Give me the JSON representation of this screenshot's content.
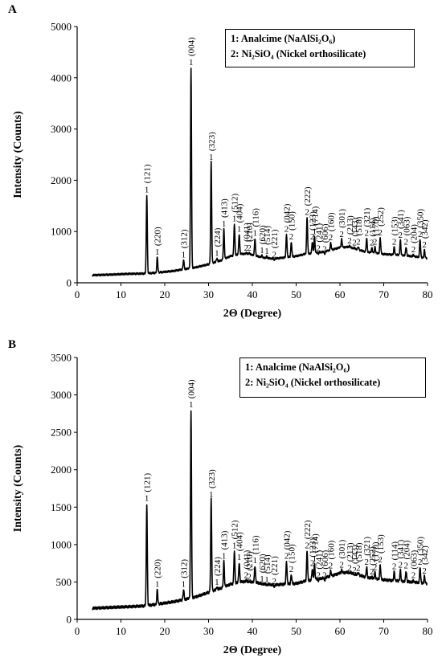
{
  "chart_data": [
    {
      "panel": "A",
      "type": "line",
      "xlabel": "2Θ (Degree)",
      "ylabel": "Intensity (Counts)",
      "xlim": [
        0,
        80
      ],
      "ylim": [
        0,
        5000
      ],
      "xticks": [
        "0",
        "10",
        "20",
        "30",
        "40",
        "50",
        "60",
        "70",
        "80"
      ],
      "yticks": [
        "0",
        "1000",
        "2000",
        "3000",
        "4000",
        "5000"
      ],
      "legend": [
        "1: Analcime (NaAlSi₂O₆)",
        "2: Ni₂SiO₄ (Nickel orthosilicate)"
      ],
      "legend_position": "top-right",
      "baseline": [
        [
          3.5,
          150
        ],
        [
          8,
          160
        ],
        [
          12,
          175
        ],
        [
          15,
          180
        ],
        [
          18,
          195
        ],
        [
          22,
          230
        ],
        [
          24,
          260
        ],
        [
          27,
          300
        ],
        [
          30,
          360
        ],
        [
          33,
          440
        ],
        [
          35,
          520
        ],
        [
          37,
          560
        ],
        [
          39,
          570
        ],
        [
          41,
          520
        ],
        [
          43,
          480
        ],
        [
          45,
          470
        ],
        [
          47,
          490
        ],
        [
          50,
          520
        ],
        [
          52,
          560
        ],
        [
          54,
          580
        ],
        [
          56,
          600
        ],
        [
          58,
          640
        ],
        [
          60,
          690
        ],
        [
          62,
          700
        ],
        [
          64,
          650
        ],
        [
          66,
          600
        ],
        [
          68,
          580
        ],
        [
          70,
          560
        ],
        [
          72,
          550
        ],
        [
          74,
          540
        ],
        [
          76,
          520
        ],
        [
          78,
          500
        ],
        [
          80,
          480
        ]
      ],
      "peaks": [
        {
          "x": 15.9,
          "y": 1720,
          "phase": "1",
          "hkl": "(121)"
        },
        {
          "x": 18.3,
          "y": 500,
          "phase": "1",
          "hkl": "(220)"
        },
        {
          "x": 24.3,
          "y": 450,
          "phase": "1",
          "hkl": "(312)"
        },
        {
          "x": 26.0,
          "y": 4200,
          "phase": "1",
          "hkl": "(004)"
        },
        {
          "x": 30.6,
          "y": 2350,
          "phase": "1",
          "hkl": "(323)"
        },
        {
          "x": 31.9,
          "y": 480,
          "phase": "1",
          "hkl": "(224)"
        },
        {
          "x": 33.5,
          "y": 1050,
          "phase": "1",
          "hkl": "(413)"
        },
        {
          "x": 35.9,
          "y": 1150,
          "phase": "1",
          "hkl": "(512)"
        },
        {
          "x": 37.0,
          "y": 950,
          "phase": "1",
          "hkl": "(404)"
        },
        {
          "x": 38.6,
          "y": 580,
          "phase": "2",
          "hkl": "(041)"
        },
        {
          "x": 39.3,
          "y": 580,
          "phase": "2",
          "hkl": "(210)"
        },
        {
          "x": 40.6,
          "y": 870,
          "phase": "1",
          "hkl": "(116)"
        },
        {
          "x": 42.2,
          "y": 530,
          "phase": "1",
          "hkl": "(620)"
        },
        {
          "x": 43.3,
          "y": 520,
          "phase": "1",
          "hkl": "(514)"
        },
        {
          "x": 45.0,
          "y": 450,
          "phase": "2",
          "hkl": "(221)"
        },
        {
          "x": 47.8,
          "y": 950,
          "phase": "2",
          "hkl": "(042)"
        },
        {
          "x": 48.9,
          "y": 800,
          "phase": "2",
          "hkl": "(150)"
        },
        {
          "x": 52.5,
          "y": 1280,
          "phase": "2",
          "hkl": "(222)"
        },
        {
          "x": 53.7,
          "y": 800,
          "phase": "2",
          "hkl": "(123)"
        },
        {
          "x": 54.2,
          "y": 900,
          "phase": "1",
          "hkl": "(714)"
        },
        {
          "x": 55.1,
          "y": 570,
          "phase": "2",
          "hkl": "(241)"
        },
        {
          "x": 56.5,
          "y": 560,
          "phase": "2",
          "hkl": "(606)"
        },
        {
          "x": 57.9,
          "y": 780,
          "phase": "2",
          "hkl": "(160)"
        },
        {
          "x": 60.4,
          "y": 850,
          "phase": "2",
          "hkl": "(301)"
        },
        {
          "x": 62.2,
          "y": 720,
          "phase": "2",
          "hkl": "(213)"
        },
        {
          "x": 63.3,
          "y": 680,
          "phase": "2",
          "hkl": "(143)"
        },
        {
          "x": 64.2,
          "y": 700,
          "phase": "2",
          "hkl": "(518)"
        },
        {
          "x": 66.1,
          "y": 870,
          "phase": "2",
          "hkl": "(321)"
        },
        {
          "x": 67.3,
          "y": 680,
          "phase": "2",
          "hkl": "(114)"
        },
        {
          "x": 68.0,
          "y": 700,
          "phase": "2",
          "hkl": "(170)"
        },
        {
          "x": 69.2,
          "y": 880,
          "phase": "2",
          "hkl": "(252)"
        },
        {
          "x": 72.4,
          "y": 700,
          "phase": "2",
          "hkl": "(153)"
        },
        {
          "x": 73.8,
          "y": 830,
          "phase": "2",
          "hkl": "(341)"
        },
        {
          "x": 75.1,
          "y": 700,
          "phase": "2",
          "hkl": "(063)"
        },
        {
          "x": 76.8,
          "y": 550,
          "phase": "2",
          "hkl": "(204)"
        },
        {
          "x": 78.3,
          "y": 850,
          "phase": "2",
          "hkl": "(350)"
        },
        {
          "x": 79.3,
          "y": 640,
          "phase": "2",
          "hkl": "(342)"
        }
      ]
    },
    {
      "panel": "B",
      "type": "line",
      "xlabel": "2Θ (Degree)",
      "ylabel": "Intensity (Counts)",
      "xlim": [
        0,
        80
      ],
      "ylim": [
        0,
        3500
      ],
      "xticks": [
        "0",
        "10",
        "20",
        "30",
        "40",
        "50",
        "60",
        "70",
        "80"
      ],
      "yticks": [
        "0",
        "500",
        "1000",
        "1500",
        "2000",
        "2500",
        "3000",
        "3500"
      ],
      "legend": [
        "1: Analcime (NaAlSi₂O₆)",
        "2: Ni₂SiO₄ (Nickel orthosilicate)"
      ],
      "legend_position": "top-right",
      "baseline": [
        [
          3.5,
          150
        ],
        [
          8,
          160
        ],
        [
          12,
          170
        ],
        [
          15,
          180
        ],
        [
          18,
          200
        ],
        [
          22,
          235
        ],
        [
          24,
          260
        ],
        [
          27,
          300
        ],
        [
          30,
          360
        ],
        [
          33,
          420
        ],
        [
          35,
          470
        ],
        [
          37,
          500
        ],
        [
          39,
          510
        ],
        [
          41,
          490
        ],
        [
          43,
          470
        ],
        [
          45,
          460
        ],
        [
          47,
          470
        ],
        [
          50,
          480
        ],
        [
          52,
          510
        ],
        [
          54,
          530
        ],
        [
          56,
          550
        ],
        [
          58,
          580
        ],
        [
          60,
          620
        ],
        [
          62,
          630
        ],
        [
          64,
          600
        ],
        [
          66,
          560
        ],
        [
          68,
          540
        ],
        [
          70,
          530
        ],
        [
          72,
          520
        ],
        [
          74,
          510
        ],
        [
          76,
          500
        ],
        [
          78,
          490
        ],
        [
          80,
          480
        ]
      ],
      "peaks": [
        {
          "x": 15.9,
          "y": 1550,
          "phase": "1",
          "hkl": "(121)"
        },
        {
          "x": 18.3,
          "y": 400,
          "phase": "1",
          "hkl": "(220)"
        },
        {
          "x": 24.3,
          "y": 400,
          "phase": "1",
          "hkl": "(312)"
        },
        {
          "x": 26.0,
          "y": 2800,
          "phase": "1",
          "hkl": "(004)"
        },
        {
          "x": 30.6,
          "y": 1600,
          "phase": "1",
          "hkl": "(323)"
        },
        {
          "x": 31.9,
          "y": 430,
          "phase": "1",
          "hkl": "(224)"
        },
        {
          "x": 33.5,
          "y": 780,
          "phase": "1",
          "hkl": "(413)"
        },
        {
          "x": 35.9,
          "y": 920,
          "phase": "1",
          "hkl": "(512)"
        },
        {
          "x": 37.0,
          "y": 760,
          "phase": "1",
          "hkl": "(404)"
        },
        {
          "x": 38.6,
          "y": 520,
          "phase": "2",
          "hkl": "(041)"
        },
        {
          "x": 39.3,
          "y": 500,
          "phase": "2",
          "hkl": "(210)"
        },
        {
          "x": 40.6,
          "y": 720,
          "phase": "1",
          "hkl": "(116)"
        },
        {
          "x": 42.2,
          "y": 470,
          "phase": "1",
          "hkl": "(620)"
        },
        {
          "x": 43.3,
          "y": 460,
          "phase": "1",
          "hkl": "(514)"
        },
        {
          "x": 45.0,
          "y": 440,
          "phase": "2",
          "hkl": "(221)"
        },
        {
          "x": 47.8,
          "y": 780,
          "phase": "2",
          "hkl": "(042)"
        },
        {
          "x": 48.9,
          "y": 600,
          "phase": "2",
          "hkl": "(150)"
        },
        {
          "x": 52.5,
          "y": 920,
          "phase": "2",
          "hkl": "(222)"
        },
        {
          "x": 53.7,
          "y": 680,
          "phase": "2",
          "hkl": "(123)"
        },
        {
          "x": 54.2,
          "y": 740,
          "phase": "1",
          "hkl": "(714)"
        },
        {
          "x": 55.1,
          "y": 520,
          "phase": "2",
          "hkl": "(241)"
        },
        {
          "x": 56.5,
          "y": 520,
          "phase": "2",
          "hkl": "(606)"
        },
        {
          "x": 57.9,
          "y": 650,
          "phase": "2",
          "hkl": "(160)"
        },
        {
          "x": 60.4,
          "y": 660,
          "phase": "2",
          "hkl": "(301)"
        },
        {
          "x": 62.2,
          "y": 620,
          "phase": "2",
          "hkl": "(213)"
        },
        {
          "x": 63.3,
          "y": 590,
          "phase": "2",
          "hkl": "(143)"
        },
        {
          "x": 64.2,
          "y": 620,
          "phase": "2",
          "hkl": "(518)"
        },
        {
          "x": 66.1,
          "y": 700,
          "phase": "2",
          "hkl": "(321)"
        },
        {
          "x": 67.3,
          "y": 570,
          "phase": "2",
          "hkl": "(252)"
        },
        {
          "x": 68.0,
          "y": 630,
          "phase": "2",
          "hkl": "(170)"
        },
        {
          "x": 69.2,
          "y": 730,
          "phase": "2",
          "hkl": "(153)"
        },
        {
          "x": 72.4,
          "y": 640,
          "phase": "2",
          "hkl": "(114)"
        },
        {
          "x": 73.8,
          "y": 660,
          "phase": "2",
          "hkl": "(341)"
        },
        {
          "x": 75.1,
          "y": 650,
          "phase": "2",
          "hkl": "(204)"
        },
        {
          "x": 76.8,
          "y": 520,
          "phase": "2",
          "hkl": "(063)"
        },
        {
          "x": 78.3,
          "y": 700,
          "phase": "2",
          "hkl": "(350)"
        },
        {
          "x": 79.3,
          "y": 580,
          "phase": "2",
          "hkl": "(342)"
        }
      ]
    }
  ]
}
